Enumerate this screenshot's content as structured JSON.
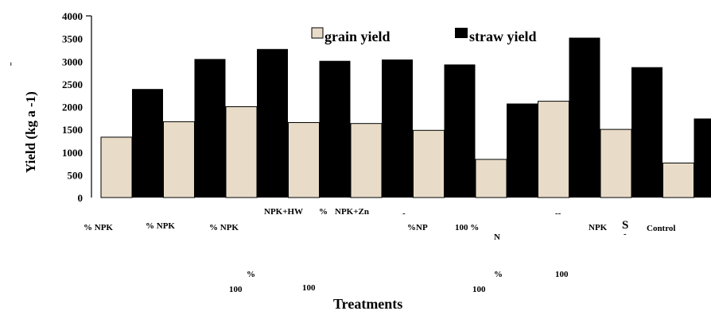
{
  "chart_data": {
    "type": "bar",
    "xlabel": "Treatments",
    "ylabel": "Yield (kg a   -1)",
    "ylabel_mark": "¨",
    "ylim": [
      0,
      4000
    ],
    "yticks": [
      0,
      500,
      1000,
      1500,
      2000,
      2500,
      3000,
      3500,
      4000
    ],
    "legend_position": "top-center",
    "grid": false,
    "series": [
      {
        "name": "grain yield",
        "color": "#e8dcc8",
        "values": [
          1330,
          1670,
          2000,
          1650,
          1630,
          1480,
          840,
          2120,
          1500,
          760
        ]
      },
      {
        "name": "straw yield",
        "color": "#000000",
        "values": [
          2390,
          3050,
          3270,
          3010,
          3040,
          2930,
          2070,
          3520,
          2870,
          1740
        ]
      }
    ],
    "category_label_fragments": [
      "% NPK",
      "% NPK",
      "% NPK",
      "NPK+HW",
      "%",
      "NPK+Zn",
      "%NP",
      "100 %",
      "N",
      "NPK",
      "S",
      "-",
      "Control",
      "%",
      "100",
      "100",
      "100",
      "%",
      "100",
      "-",
      "--"
    ]
  }
}
